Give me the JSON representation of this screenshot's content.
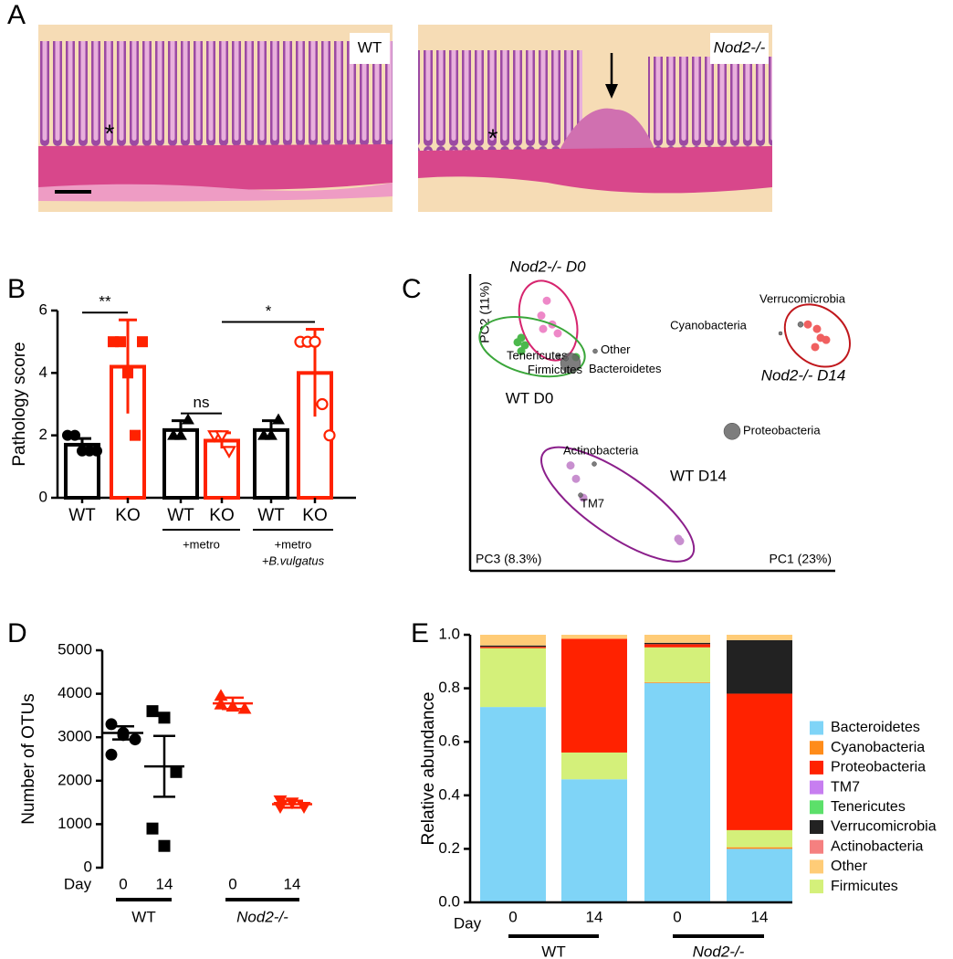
{
  "panels": [
    "A",
    "B",
    "C",
    "D",
    "E"
  ],
  "images": [
    {
      "label": "WT",
      "marker": "*"
    },
    {
      "label": "Nod2-/-",
      "marker": "*"
    }
  ],
  "chart_data": [
    {
      "type": "bar",
      "ylabel": "Pathology score",
      "categories": [
        "WT",
        "KO",
        "WT",
        "KO",
        "WT",
        "KO"
      ],
      "values": [
        1.7,
        4.2,
        2.17,
        1.83,
        2.17,
        4
      ],
      "errors": [
        0.2,
        1.5,
        0.3,
        0.25,
        0.3,
        1.4
      ],
      "colors": [
        "#000000",
        "#ff2200",
        "#000000",
        "#ff2200",
        "#000000",
        "#ff2200"
      ],
      "markers": [
        "circle",
        "square",
        "triangle",
        "triangle-down-open",
        "triangle",
        "circle-open"
      ],
      "points": [
        [
          2,
          2,
          1.5,
          1.5,
          1.5
        ],
        [
          5,
          5,
          4,
          2,
          5
        ],
        [
          2,
          2,
          2.5
        ],
        [
          2,
          2,
          1.5
        ],
        [
          2,
          2,
          2.5
        ],
        [
          5,
          5,
          5,
          3,
          2
        ]
      ],
      "ylim": [
        0,
        6
      ],
      "yticks": [
        0,
        2,
        4,
        6
      ],
      "groups": [
        {
          "labels": [
            "+metro"
          ],
          "from": 2,
          "to": 3
        },
        {
          "labels": [
            "+metro",
            "+B.vulgatus"
          ],
          "from": 4,
          "to": 5
        }
      ],
      "significance": [
        {
          "label": "**",
          "from": 0,
          "to": 1
        },
        {
          "label": "ns",
          "from": 2,
          "to": 3
        },
        {
          "label": "*",
          "from": 3,
          "to": 5
        }
      ]
    },
    {
      "type": "pca",
      "xlabel": "PC1 (23%)",
      "ylabel": "PC2 (11%)",
      "zlabel": "PC3 (8.3%)",
      "xlim": [
        0,
        1
      ],
      "ylim": [
        0,
        1
      ],
      "groups": [
        {
          "name": "Nod2-/- D0",
          "color": "#d6246e",
          "point_color": "#ee88c8",
          "x": [
            0.21,
            0.195,
            0.225,
            0.24,
            0.2
          ],
          "y": [
            0.91,
            0.86,
            0.83,
            0.8,
            0.815
          ]
        },
        {
          "name": "WT D0",
          "color": "#3aa63a",
          "point_color": "#4cb84c",
          "x": [
            0.14,
            0.15,
            0.13,
            0.14,
            0.29
          ],
          "y": [
            0.785,
            0.76,
            0.77,
            0.74,
            0.72
          ]
        },
        {
          "name": "WT D14",
          "color": "#8b1f8b",
          "point_color": "#c88fcf",
          "x": [
            0.275,
            0.29,
            0.31,
            0.57,
            0.575
          ],
          "y": [
            0.355,
            0.31,
            0.246,
            0.108,
            0.1
          ]
        },
        {
          "name": "Nod2-/- D14",
          "color": "#c0171c",
          "point_color": "#f06060",
          "x": [
            0.925,
            0.95,
            0.96,
            0.975,
            0.945
          ],
          "y": [
            0.83,
            0.815,
            0.785,
            0.778,
            0.754
          ]
        }
      ],
      "taxa": [
        {
          "name": "Verrucomicrobia",
          "x": 0.905,
          "y": 0.83,
          "size": 2
        },
        {
          "name": "Cyanobacteria",
          "x": 0.85,
          "y": 0.8,
          "size": 1
        },
        {
          "name": "Proteobacteria",
          "x": 0.7175,
          "y": 0.47,
          "size": 8
        },
        {
          "name": "Bacteroidetes",
          "x": 0.275,
          "y": 0.7,
          "size": 10
        },
        {
          "name": "Other",
          "x": 0.3425,
          "y": 0.74,
          "size": 1.5
        },
        {
          "name": "Tenericutes",
          "x": 0.2425,
          "y": 0.723,
          "size": 1
        },
        {
          "name": "Firmicutes",
          "x": 0.2625,
          "y": 0.715,
          "size": 1.5
        },
        {
          "name": "Actinobacteria",
          "x": 0.34,
          "y": 0.36,
          "size": 1.5
        },
        {
          "name": "TM7",
          "x": 0.3025,
          "y": 0.255,
          "size": 1.5
        }
      ]
    },
    {
      "type": "dot",
      "ylabel": "Number of OTUs",
      "xlabel": "Day",
      "categories": [
        "0",
        "14",
        "0",
        "14"
      ],
      "groups": [
        {
          "label": "WT",
          "from": 0,
          "to": 1
        },
        {
          "label": "Nod2-/-",
          "from": 2,
          "to": 3
        }
      ],
      "colors": [
        "#000000",
        "#000000",
        "#ff2200",
        "#ff2200"
      ],
      "markers": [
        "circle",
        "square",
        "triangle",
        "triangle-down"
      ],
      "points": [
        [
          3300,
          3050,
          2950,
          2600,
          3100
        ],
        [
          3600,
          3450,
          2200,
          900,
          500
        ],
        [
          3950,
          3700,
          3650,
          3750
        ],
        [
          1550,
          1500,
          1400,
          1400
        ]
      ],
      "means": [
        3100,
        2330,
        3780,
        1460
      ],
      "errors": [
        150,
        700,
        130,
        80
      ],
      "ylim": [
        0,
        5000
      ],
      "yticks": [
        0,
        1000,
        2000,
        3000,
        4000,
        5000
      ]
    },
    {
      "type": "stacked_bar",
      "ylabel": "Relative abundance",
      "xlabel": "Day",
      "categories": [
        "0",
        "14",
        "0",
        "14"
      ],
      "groups": [
        {
          "label": "WT",
          "from": 0,
          "to": 1
        },
        {
          "label": "Nod2-/-",
          "from": 2,
          "to": 3
        }
      ],
      "series": [
        {
          "name": "Bacteroidetes",
          "color": "#7fd4f7",
          "values": [
            0.73,
            0.46,
            0.82,
            0.2
          ]
        },
        {
          "name": "Cyanobacteria",
          "color": "#ff8c1a",
          "values": [
            0,
            0,
            0.003,
            0.006
          ]
        },
        {
          "name": "Proteobacteria",
          "color": "#ff2200",
          "values": [
            0.005,
            0.425,
            0.012,
            0.51
          ]
        },
        {
          "name": "TM7",
          "color": "#c77ef0",
          "values": [
            0,
            0,
            0,
            0
          ]
        },
        {
          "name": "Tenericutes",
          "color": "#5ce06a",
          "values": [
            0,
            0,
            0,
            0
          ]
        },
        {
          "name": "Verrucomicrobia",
          "color": "#222222",
          "values": [
            0.005,
            0,
            0.005,
            0.2
          ]
        },
        {
          "name": "Actinobacteria",
          "color": "#f58080",
          "values": [
            0,
            0,
            0,
            0
          ]
        },
        {
          "name": "Other",
          "color": "#ffcc77",
          "values": [
            0.04,
            0.015,
            0.03,
            0.02
          ]
        },
        {
          "name": "Firmicutes",
          "color": "#d4f07a",
          "values": [
            0.22,
            0.1,
            0.13,
            0.064
          ]
        }
      ],
      "ylim": [
        0,
        1
      ],
      "yticks": [
        {
          "value": 0,
          "label": "0.0"
        },
        {
          "value": 0.2,
          "label": "0.2"
        },
        {
          "value": 0.4,
          "label": "0.4"
        },
        {
          "value": 0.6,
          "label": "0.6"
        },
        {
          "value": 0.8,
          "label": "0.8"
        },
        {
          "value": 1,
          "label": "1.0"
        }
      ],
      "legend": "right"
    }
  ]
}
